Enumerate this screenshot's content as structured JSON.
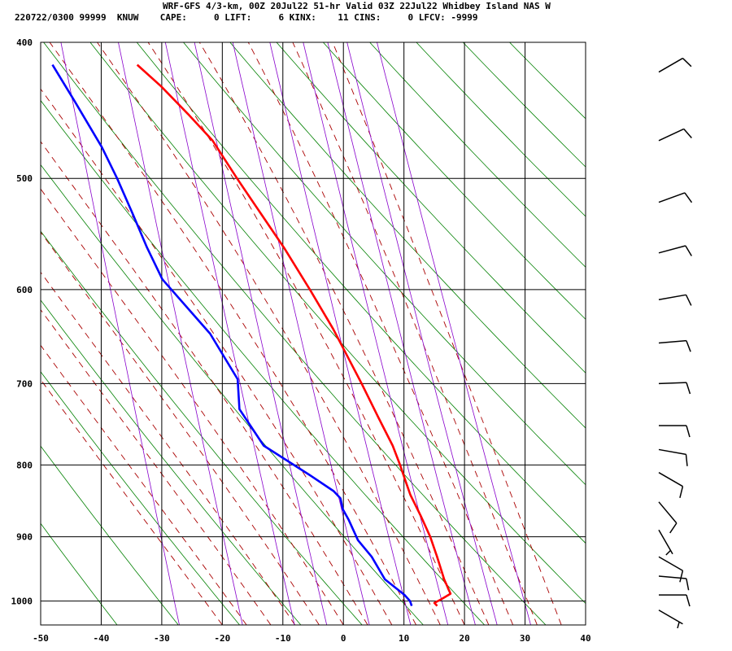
{
  "header": {
    "line1": "WRF-GFS 4/3-km, 00Z 20Jul22 51-hr Valid 03Z 22Jul22 Whidbey Island NAS W",
    "line2": "220722/0300 99999  KNUW    CAPE:     0 LIFT:     6 KINX:    11 CINS:     0 LFCV: -9999"
  },
  "chart_data": {
    "type": "line",
    "subtype": "skew-t log-p sounding",
    "xlim": [
      -50,
      40
    ],
    "ylim": [
      1040,
      400
    ],
    "yscale": "log",
    "x_ticks": [
      "-50",
      "-40",
      "-30",
      "-20",
      "-10",
      "0",
      "10",
      "20",
      "30",
      "40"
    ],
    "y_ticks": [
      "400",
      "500",
      "600",
      "700",
      "800",
      "900",
      "1000"
    ],
    "grid": true,
    "series": [
      {
        "key": "temperature",
        "color": "#ff0000",
        "points": [
          {
            "p": 1008,
            "t": 15.8
          },
          {
            "p": 1003,
            "t": 15.4
          },
          {
            "p": 997,
            "t": 16.6
          },
          {
            "p": 988,
            "t": 18.2
          },
          {
            "p": 965,
            "t": 17.4
          },
          {
            "p": 930,
            "t": 16.6
          },
          {
            "p": 900,
            "t": 15.8
          },
          {
            "p": 870,
            "t": 14.6
          },
          {
            "p": 840,
            "t": 13.2
          },
          {
            "p": 820,
            "t": 12.6
          },
          {
            "p": 800,
            "t": 12.0
          },
          {
            "p": 775,
            "t": 11.1
          },
          {
            "p": 740,
            "t": 9.2
          },
          {
            "p": 700,
            "t": 7.0
          },
          {
            "p": 660,
            "t": 4.5
          },
          {
            "p": 640,
            "t": 3.2
          },
          {
            "p": 600,
            "t": 0.0
          },
          {
            "p": 560,
            "t": -3.6
          },
          {
            "p": 530,
            "t": -6.8
          },
          {
            "p": 500,
            "t": -10.2
          },
          {
            "p": 470,
            "t": -13.6
          },
          {
            "p": 450,
            "t": -17.2
          },
          {
            "p": 430,
            "t": -21.2
          },
          {
            "p": 415,
            "t": -24.8
          }
        ]
      },
      {
        "key": "dewpoint",
        "color": "#0000ff",
        "points": [
          {
            "p": 1008,
            "t": 11.6
          },
          {
            "p": 1000,
            "t": 11.4
          },
          {
            "p": 990,
            "t": 10.6
          },
          {
            "p": 965,
            "t": 7.6
          },
          {
            "p": 930,
            "t": 5.8
          },
          {
            "p": 905,
            "t": 3.8
          },
          {
            "p": 875,
            "t": 2.6
          },
          {
            "p": 860,
            "t": 1.8
          },
          {
            "p": 845,
            "t": 1.6
          },
          {
            "p": 835,
            "t": 0.6
          },
          {
            "p": 815,
            "t": -2.8
          },
          {
            "p": 775,
            "t": -10.2
          },
          {
            "p": 730,
            "t": -13.6
          },
          {
            "p": 695,
            "t": -13.4
          },
          {
            "p": 645,
            "t": -17.2
          },
          {
            "p": 590,
            "t": -24.2
          },
          {
            "p": 560,
            "t": -26.2
          },
          {
            "p": 530,
            "t": -28.0
          },
          {
            "p": 500,
            "t": -30.0
          },
          {
            "p": 475,
            "t": -32.0
          },
          {
            "p": 440,
            "t": -35.8
          },
          {
            "p": 415,
            "t": -38.8
          }
        ]
      }
    ],
    "background_lines": {
      "isotherm_color": "#000000",
      "dry_adiabat_color": "#008000",
      "moist_adiabat_color": "#aa0000",
      "mixing_ratio_color": "#8800cc"
    },
    "wind_barbs": [
      {
        "p": 420,
        "speed": 10,
        "dir": 240
      },
      {
        "p": 470,
        "speed": 10,
        "dir": 245
      },
      {
        "p": 520,
        "speed": 10,
        "dir": 250
      },
      {
        "p": 565,
        "speed": 10,
        "dir": 255
      },
      {
        "p": 610,
        "speed": 10,
        "dir": 260
      },
      {
        "p": 655,
        "speed": 10,
        "dir": 265
      },
      {
        "p": 700,
        "speed": 10,
        "dir": 268
      },
      {
        "p": 750,
        "speed": 10,
        "dir": 270
      },
      {
        "p": 780,
        "speed": 10,
        "dir": 280
      },
      {
        "p": 810,
        "speed": 10,
        "dir": 300
      },
      {
        "p": 850,
        "speed": 10,
        "dir": 320
      },
      {
        "p": 890,
        "speed": 5,
        "dir": 330
      },
      {
        "p": 930,
        "speed": 10,
        "dir": 300
      },
      {
        "p": 960,
        "speed": 10,
        "dir": 275
      },
      {
        "p": 990,
        "speed": 10,
        "dir": 270
      },
      {
        "p": 1015,
        "speed": 5,
        "dir": 300
      }
    ]
  }
}
